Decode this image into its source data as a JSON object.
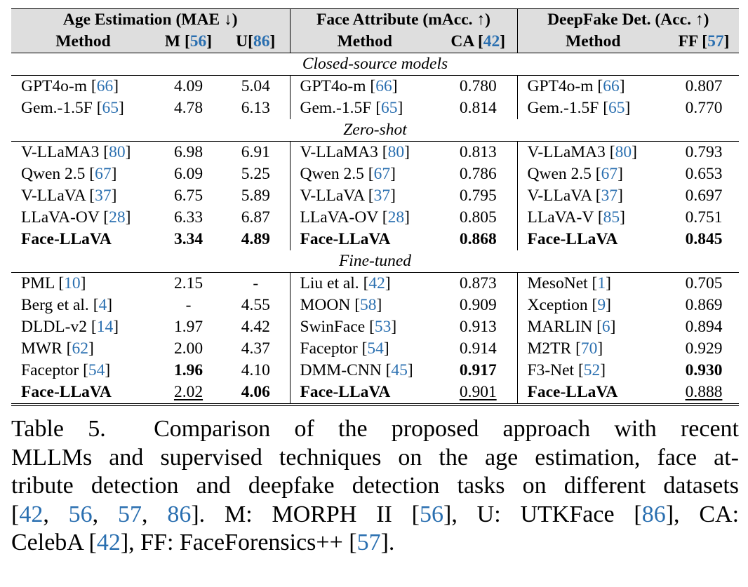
{
  "table": {
    "groups": [
      {
        "title": "Age Estimation (MAE ↓)",
        "method_header": "Method",
        "cols": [
          {
            "name": "M",
            "ref": "56"
          },
          {
            "name": "U",
            "ref": "86"
          }
        ]
      },
      {
        "title": "Face Attribute (mAcc. ↑)",
        "method_header": "Method",
        "cols": [
          {
            "name": "CA",
            "ref": "42"
          }
        ]
      },
      {
        "title": "DeepFake Det. (Acc. ↑)",
        "method_header": "Method",
        "cols": [
          {
            "name": "FF",
            "ref": "57"
          }
        ]
      }
    ],
    "sections": [
      {
        "title": "Closed-source models",
        "rows": [
          {
            "age_method": "GPT4o-m",
            "age_ref": "66",
            "m": "4.09",
            "u": "5.04",
            "fa_method": "GPT4o-m",
            "fa_ref": "66",
            "ca": "0.780",
            "df_method": "GPT4o-m",
            "df_ref": "66",
            "ff": "0.807"
          },
          {
            "age_method": "Gem.-1.5F",
            "age_ref": "65",
            "m": "4.78",
            "u": "6.13",
            "fa_method": "Gem.-1.5F",
            "fa_ref": "65",
            "ca": "0.814",
            "df_method": "Gem.-1.5F",
            "df_ref": "65",
            "ff": "0.770"
          }
        ]
      },
      {
        "title": "Zero-shot",
        "rows": [
          {
            "age_method": "V-LLaMA3",
            "age_ref": "80",
            "m": "6.98",
            "u": "6.91",
            "fa_method": "V-LLaMA3",
            "fa_ref": "80",
            "ca": "0.813",
            "df_method": "V-LLaMA3",
            "df_ref": "80",
            "ff": "0.793"
          },
          {
            "age_method": "Qwen 2.5",
            "age_ref": "67",
            "m": "6.09",
            "u": "5.25",
            "fa_method": "Qwen 2.5",
            "fa_ref": "67",
            "ca": "0.786",
            "df_method": "Qwen 2.5",
            "df_ref": "67",
            "ff": "0.653"
          },
          {
            "age_method": "V-LLaVA",
            "age_ref": "37",
            "m": "6.75",
            "u": "5.89",
            "fa_method": "V-LLaVA",
            "fa_ref": "37",
            "ca": "0.795",
            "df_method": "V-LLaVA",
            "df_ref": "37",
            "ff": "0.697"
          },
          {
            "age_method": "LLaVA-OV",
            "age_ref": "28",
            "m": "6.33",
            "u": "6.87",
            "fa_method": "LLaVA-OV",
            "fa_ref": "28",
            "ca": "0.805",
            "df_method": "LLaVA-V",
            "df_ref": "85",
            "ff": "0.751"
          },
          {
            "age_method": "Face-LLaVA",
            "age_ref": "",
            "m": "3.34",
            "u": "4.89",
            "fa_method": "Face-LLaVA",
            "fa_ref": "",
            "ca": "0.868",
            "df_method": "Face-LLaVA",
            "df_ref": "",
            "ff": "0.845"
          }
        ]
      },
      {
        "title": "Fine-tuned",
        "rows": [
          {
            "age_method": "PML",
            "age_ref": "10",
            "m": "2.15",
            "u": "-",
            "fa_method": "Liu et al.",
            "fa_ref": "42",
            "ca": "0.873",
            "df_method": "MesoNet",
            "df_ref": "1",
            "ff": "0.705"
          },
          {
            "age_method": "Berg et al.",
            "age_ref": "4",
            "m": "-",
            "u": "4.55",
            "fa_method": "MOON",
            "fa_ref": "58",
            "ca": "0.909",
            "df_method": "Xception",
            "df_ref": "9",
            "ff": "0.869"
          },
          {
            "age_method": "DLDL-v2",
            "age_ref": "14",
            "m": "1.97",
            "u": "4.42",
            "fa_method": "SwinFace",
            "fa_ref": "53",
            "ca": "0.913",
            "df_method": "MARLIN",
            "df_ref": "6",
            "ff": "0.894"
          },
          {
            "age_method": "MWR",
            "age_ref": "62",
            "m": "2.00",
            "u": "4.37",
            "fa_method": "Faceptor",
            "fa_ref": "54",
            "ca": "0.914",
            "df_method": "M2TR",
            "df_ref": "70",
            "ff": "0.929"
          },
          {
            "age_method": "Faceptor",
            "age_ref": "54",
            "m": "1.96",
            "u": "4.10",
            "fa_method": "DMM-CNN",
            "fa_ref": "45",
            "ca": "0.917",
            "df_method": "F3-Net",
            "df_ref": "52",
            "ff": "0.930"
          },
          {
            "age_method": "Face-LLaVA",
            "age_ref": "",
            "m": "2.02",
            "u": "4.06",
            "fa_method": "Face-LLaVA",
            "fa_ref": "",
            "ca": "0.901",
            "df_method": "Face-LLaVA",
            "df_ref": "",
            "ff": "0.888"
          }
        ]
      }
    ]
  },
  "caption": {
    "label": "Table 5.",
    "line1": "Comparison of the proposed approach with recent",
    "line2": "MLLMs and supervised techniques on the age estimation, face at-",
    "line3": "tribute detection and deepfake detection tasks on different datasets",
    "l4_open": "[",
    "l4_r1": "42",
    "l4_r2": "56",
    "l4_r3": "57",
    "l4_r4": "86",
    "l4_mid": "].  M: MORPH II [",
    "l4_r5": "56",
    "l4_mid2": "], U: UTKFace [",
    "l4_r6": "86",
    "l4_end": "], CA:",
    "l5_a": "CelebA [",
    "l5_r1": "42",
    "l5_b": "], FF: FaceForensics++ [",
    "l5_r2": "57",
    "l5_c": "]."
  },
  "colors": {
    "citation": "#2a6fb0",
    "header_bg": "#dedede"
  }
}
